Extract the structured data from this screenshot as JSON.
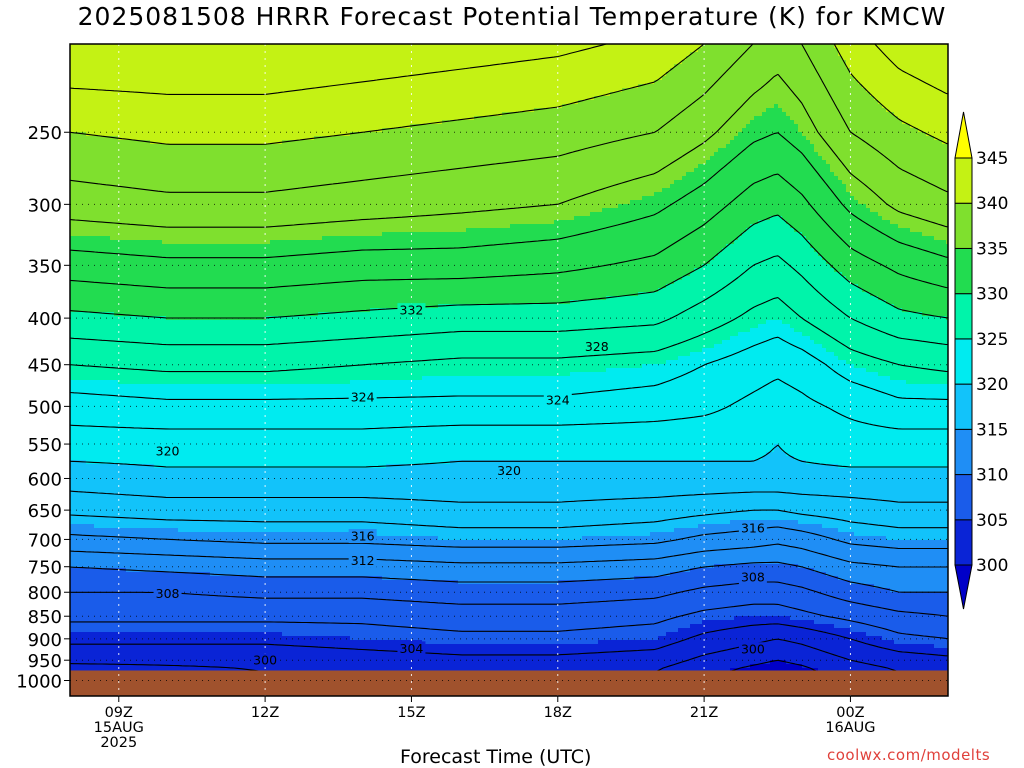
{
  "chart_data": {
    "type": "heatmap",
    "title": "2025081508 HRRR Forecast Potential Temperature (K) for KMCW",
    "xlabel": "Forecast Time (UTC)",
    "ylabel": "",
    "credit": "coolwx.com/modelts",
    "x_range_hours": [
      8,
      26
    ],
    "x_ticks": [
      {
        "hour": 9,
        "lines": [
          "09Z",
          "15AUG",
          "2025"
        ]
      },
      {
        "hour": 12,
        "lines": [
          "12Z"
        ]
      },
      {
        "hour": 15,
        "lines": [
          "15Z"
        ]
      },
      {
        "hour": 18,
        "lines": [
          "18Z"
        ]
      },
      {
        "hour": 21,
        "lines": [
          "21Z"
        ]
      },
      {
        "hour": 24,
        "lines": [
          "00Z",
          "16AUG"
        ]
      }
    ],
    "y_scale": "log",
    "y_range_hpa": [
      1040,
      200
    ],
    "y_ticks": [
      250,
      300,
      350,
      400,
      450,
      500,
      550,
      600,
      650,
      700,
      750,
      800,
      850,
      900,
      950,
      1000
    ],
    "surface_pressure_hpa": 975,
    "grid": true,
    "colorbar": {
      "ticks": [
        300,
        305,
        310,
        315,
        320,
        325,
        330,
        335,
        340,
        345
      ],
      "bins": [
        {
          "from": 300,
          "to": 305,
          "color": "#0a24d6"
        },
        {
          "from": 305,
          "to": 310,
          "color": "#1a5cea"
        },
        {
          "from": 310,
          "to": 315,
          "color": "#1f8ef5"
        },
        {
          "from": 315,
          "to": 320,
          "color": "#12c3fa"
        },
        {
          "from": 320,
          "to": 325,
          "color": "#00ebf0"
        },
        {
          "from": 325,
          "to": 330,
          "color": "#00f4aa"
        },
        {
          "from": 330,
          "to": 335,
          "color": "#22dc50"
        },
        {
          "from": 335,
          "to": 340,
          "color": "#7fe02e"
        },
        {
          "from": 340,
          "to": 345,
          "color": "#c4f214"
        },
        {
          "from": 345,
          "to": 350,
          "color": "#ffff00"
        }
      ],
      "under_color": "#0000c8",
      "over_color": "#ffff00"
    },
    "contour_interval": 2,
    "profile_hours": [
      8,
      10,
      12,
      14,
      16,
      18,
      20,
      21,
      22,
      22.5,
      23,
      24,
      25,
      26
    ],
    "profiles": [
      {
        "p": 975,
        "theta": [
          301,
          301.5,
          302,
          302,
          302.5,
          302.5,
          302,
          300.5,
          299.5,
          299,
          299.5,
          301,
          302,
          302
        ]
      },
      {
        "p": 950,
        "theta": [
          302.5,
          302.5,
          302.5,
          303,
          303.5,
          303.5,
          303,
          301.5,
          300.5,
          300,
          300.5,
          302,
          303,
          303.5
        ]
      },
      {
        "p": 900,
        "theta": [
          304.5,
          304.5,
          304.5,
          305,
          305.5,
          305.5,
          305,
          303.5,
          302.5,
          302,
          302.5,
          304,
          305.5,
          306
        ]
      },
      {
        "p": 850,
        "theta": [
          306.5,
          306.5,
          306.5,
          306.5,
          307,
          307,
          306.5,
          305.5,
          305,
          305,
          305.5,
          306.5,
          307.5,
          308
        ]
      },
      {
        "p": 800,
        "theta": [
          308,
          308,
          308.5,
          308.5,
          309,
          309,
          308.5,
          307.5,
          307,
          307,
          307.5,
          309,
          310,
          310
        ]
      },
      {
        "p": 750,
        "theta": [
          310,
          310.5,
          311,
          311,
          311.5,
          311.5,
          311,
          310,
          309.5,
          309.5,
          310,
          311.5,
          312,
          312
        ]
      },
      {
        "p": 700,
        "theta": [
          313.5,
          314,
          314.5,
          314.5,
          315,
          315,
          314.5,
          313.5,
          313,
          312.5,
          313,
          314.5,
          315,
          315
        ]
      },
      {
        "p": 650,
        "theta": [
          316.5,
          317,
          317,
          317,
          317.5,
          317.5,
          317,
          316.5,
          316,
          316,
          316.5,
          317,
          317.5,
          317.5
        ]
      },
      {
        "p": 600,
        "theta": [
          319,
          319.5,
          319.5,
          319.5,
          319.5,
          319.5,
          319.5,
          319.5,
          319.5,
          319.5,
          319.5,
          319.5,
          319.5,
          319.5
        ]
      },
      {
        "p": 550,
        "theta": [
          321,
          321,
          321,
          321,
          320.5,
          320.5,
          320.5,
          320.5,
          320.5,
          320,
          320.5,
          321,
          321,
          321
        ]
      },
      {
        "p": 500,
        "theta": [
          323,
          323.5,
          323.5,
          323.5,
          323.5,
          323.5,
          323,
          322.5,
          321.5,
          321,
          321.5,
          322.5,
          323.5,
          323.5
        ]
      },
      {
        "p": 450,
        "theta": [
          326,
          326.5,
          326.5,
          326,
          325.5,
          325.5,
          325,
          324,
          323,
          322.5,
          323,
          325,
          326,
          326.5
        ]
      },
      {
        "p": 400,
        "theta": [
          329.5,
          330,
          330,
          329.5,
          329,
          329,
          328.5,
          327,
          325.5,
          325,
          326,
          328,
          329.5,
          330
        ]
      },
      {
        "p": 350,
        "theta": [
          333,
          333.5,
          333.5,
          333,
          333,
          332.5,
          331.5,
          330,
          328,
          327.5,
          328.5,
          331,
          332.5,
          333.5
        ]
      },
      {
        "p": 300,
        "theta": [
          337,
          337.5,
          337.5,
          337,
          336.5,
          336,
          334.5,
          333,
          331,
          330.5,
          331.5,
          334.5,
          336.5,
          337.5
        ]
      },
      {
        "p": 250,
        "theta": [
          340,
          340.5,
          340.5,
          340,
          339.5,
          339,
          338,
          336.5,
          334.5,
          334,
          335,
          338,
          339.5,
          340.5
        ]
      },
      {
        "p": 200,
        "theta": [
          344,
          344,
          344,
          343.5,
          343,
          342.5,
          341.5,
          340,
          338,
          337,
          338,
          341,
          343,
          344
        ]
      }
    ],
    "contour_labels": [
      {
        "value": "332",
        "hour": 15,
        "p": 392
      },
      {
        "value": "328",
        "hour": 18.8,
        "p": 430
      },
      {
        "value": "324",
        "hour": 14,
        "p": 488
      },
      {
        "value": "324",
        "hour": 18,
        "p": 492
      },
      {
        "value": "320",
        "hour": 10,
        "p": 560
      },
      {
        "value": "320",
        "hour": 17,
        "p": 588
      },
      {
        "value": "316",
        "hour": 14,
        "p": 694
      },
      {
        "value": "316",
        "hour": 22,
        "p": 680
      },
      {
        "value": "312",
        "hour": 14,
        "p": 738
      },
      {
        "value": "308",
        "hour": 10,
        "p": 803
      },
      {
        "value": "308",
        "hour": 22,
        "p": 770
      },
      {
        "value": "304",
        "hour": 15,
        "p": 922
      },
      {
        "value": "300",
        "hour": 12,
        "p": 950
      },
      {
        "value": "300",
        "hour": 22,
        "p": 924
      }
    ]
  }
}
